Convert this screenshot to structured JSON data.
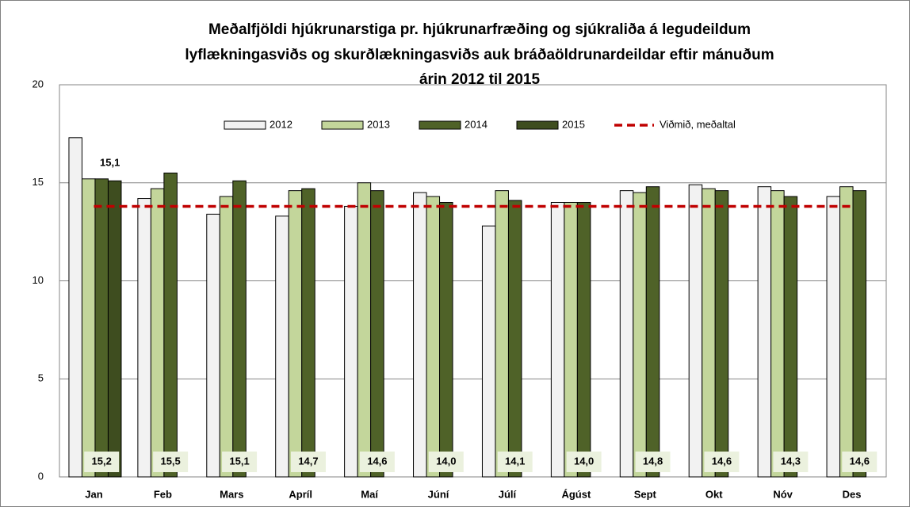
{
  "chart_data": {
    "type": "bar",
    "title": [
      "Meðalfjöldi hjúkrunarstiga pr. hjúkrunarfræðing og sjúkraliða á legudeildum",
      "lyflækningasviðs og skurðlækningasviðs auk bráðaöldrunardeildar eftir mánuðum",
      "árin 2012 til 2015"
    ],
    "categories": [
      "Jan",
      "Feb",
      "Mars",
      "Apríl",
      "Maí",
      "Júní",
      "Júlí",
      "Ágúst",
      "Sept",
      "Okt",
      "Nóv",
      "Des"
    ],
    "series": [
      {
        "name": "2012",
        "color": "#f2f2f2",
        "values": [
          17.3,
          14.2,
          13.4,
          13.3,
          13.8,
          14.5,
          12.8,
          14.0,
          14.6,
          14.9,
          14.8,
          14.3
        ]
      },
      {
        "name": "2013",
        "color": "#c3d69b",
        "values": [
          15.2,
          14.7,
          14.3,
          14.6,
          15.0,
          14.3,
          14.6,
          14.0,
          14.5,
          14.7,
          14.6,
          14.8
        ]
      },
      {
        "name": "2014",
        "color": "#4f6228",
        "values": [
          15.2,
          15.5,
          15.1,
          14.7,
          14.6,
          14.0,
          14.1,
          14.0,
          14.8,
          14.6,
          14.3,
          14.6
        ],
        "value_labels": [
          "15,2",
          "15,5",
          "15,1",
          "14,7",
          "14,6",
          "14,0",
          "14,1",
          "14,0",
          "14,8",
          "14,6",
          "14,3",
          "14,6"
        ]
      },
      {
        "name": "2015",
        "color": "#3e4d1f",
        "values": [
          15.1,
          null,
          null,
          null,
          null,
          null,
          null,
          null,
          null,
          null,
          null,
          null
        ],
        "value_labels": [
          "15,1",
          null,
          null,
          null,
          null,
          null,
          null,
          null,
          null,
          null,
          null,
          null
        ]
      },
      {
        "name": "Viðmið, meðaltal",
        "type": "line",
        "color": "#c00000",
        "values": [
          13.8,
          13.8,
          13.8,
          13.8,
          13.8,
          13.8,
          13.8,
          13.8,
          13.8,
          13.8,
          13.8,
          13.8
        ]
      }
    ],
    "ylim": [
      0,
      20
    ],
    "yticks": [
      0,
      5,
      10,
      15,
      20
    ],
    "grid": true,
    "legend": "top"
  }
}
